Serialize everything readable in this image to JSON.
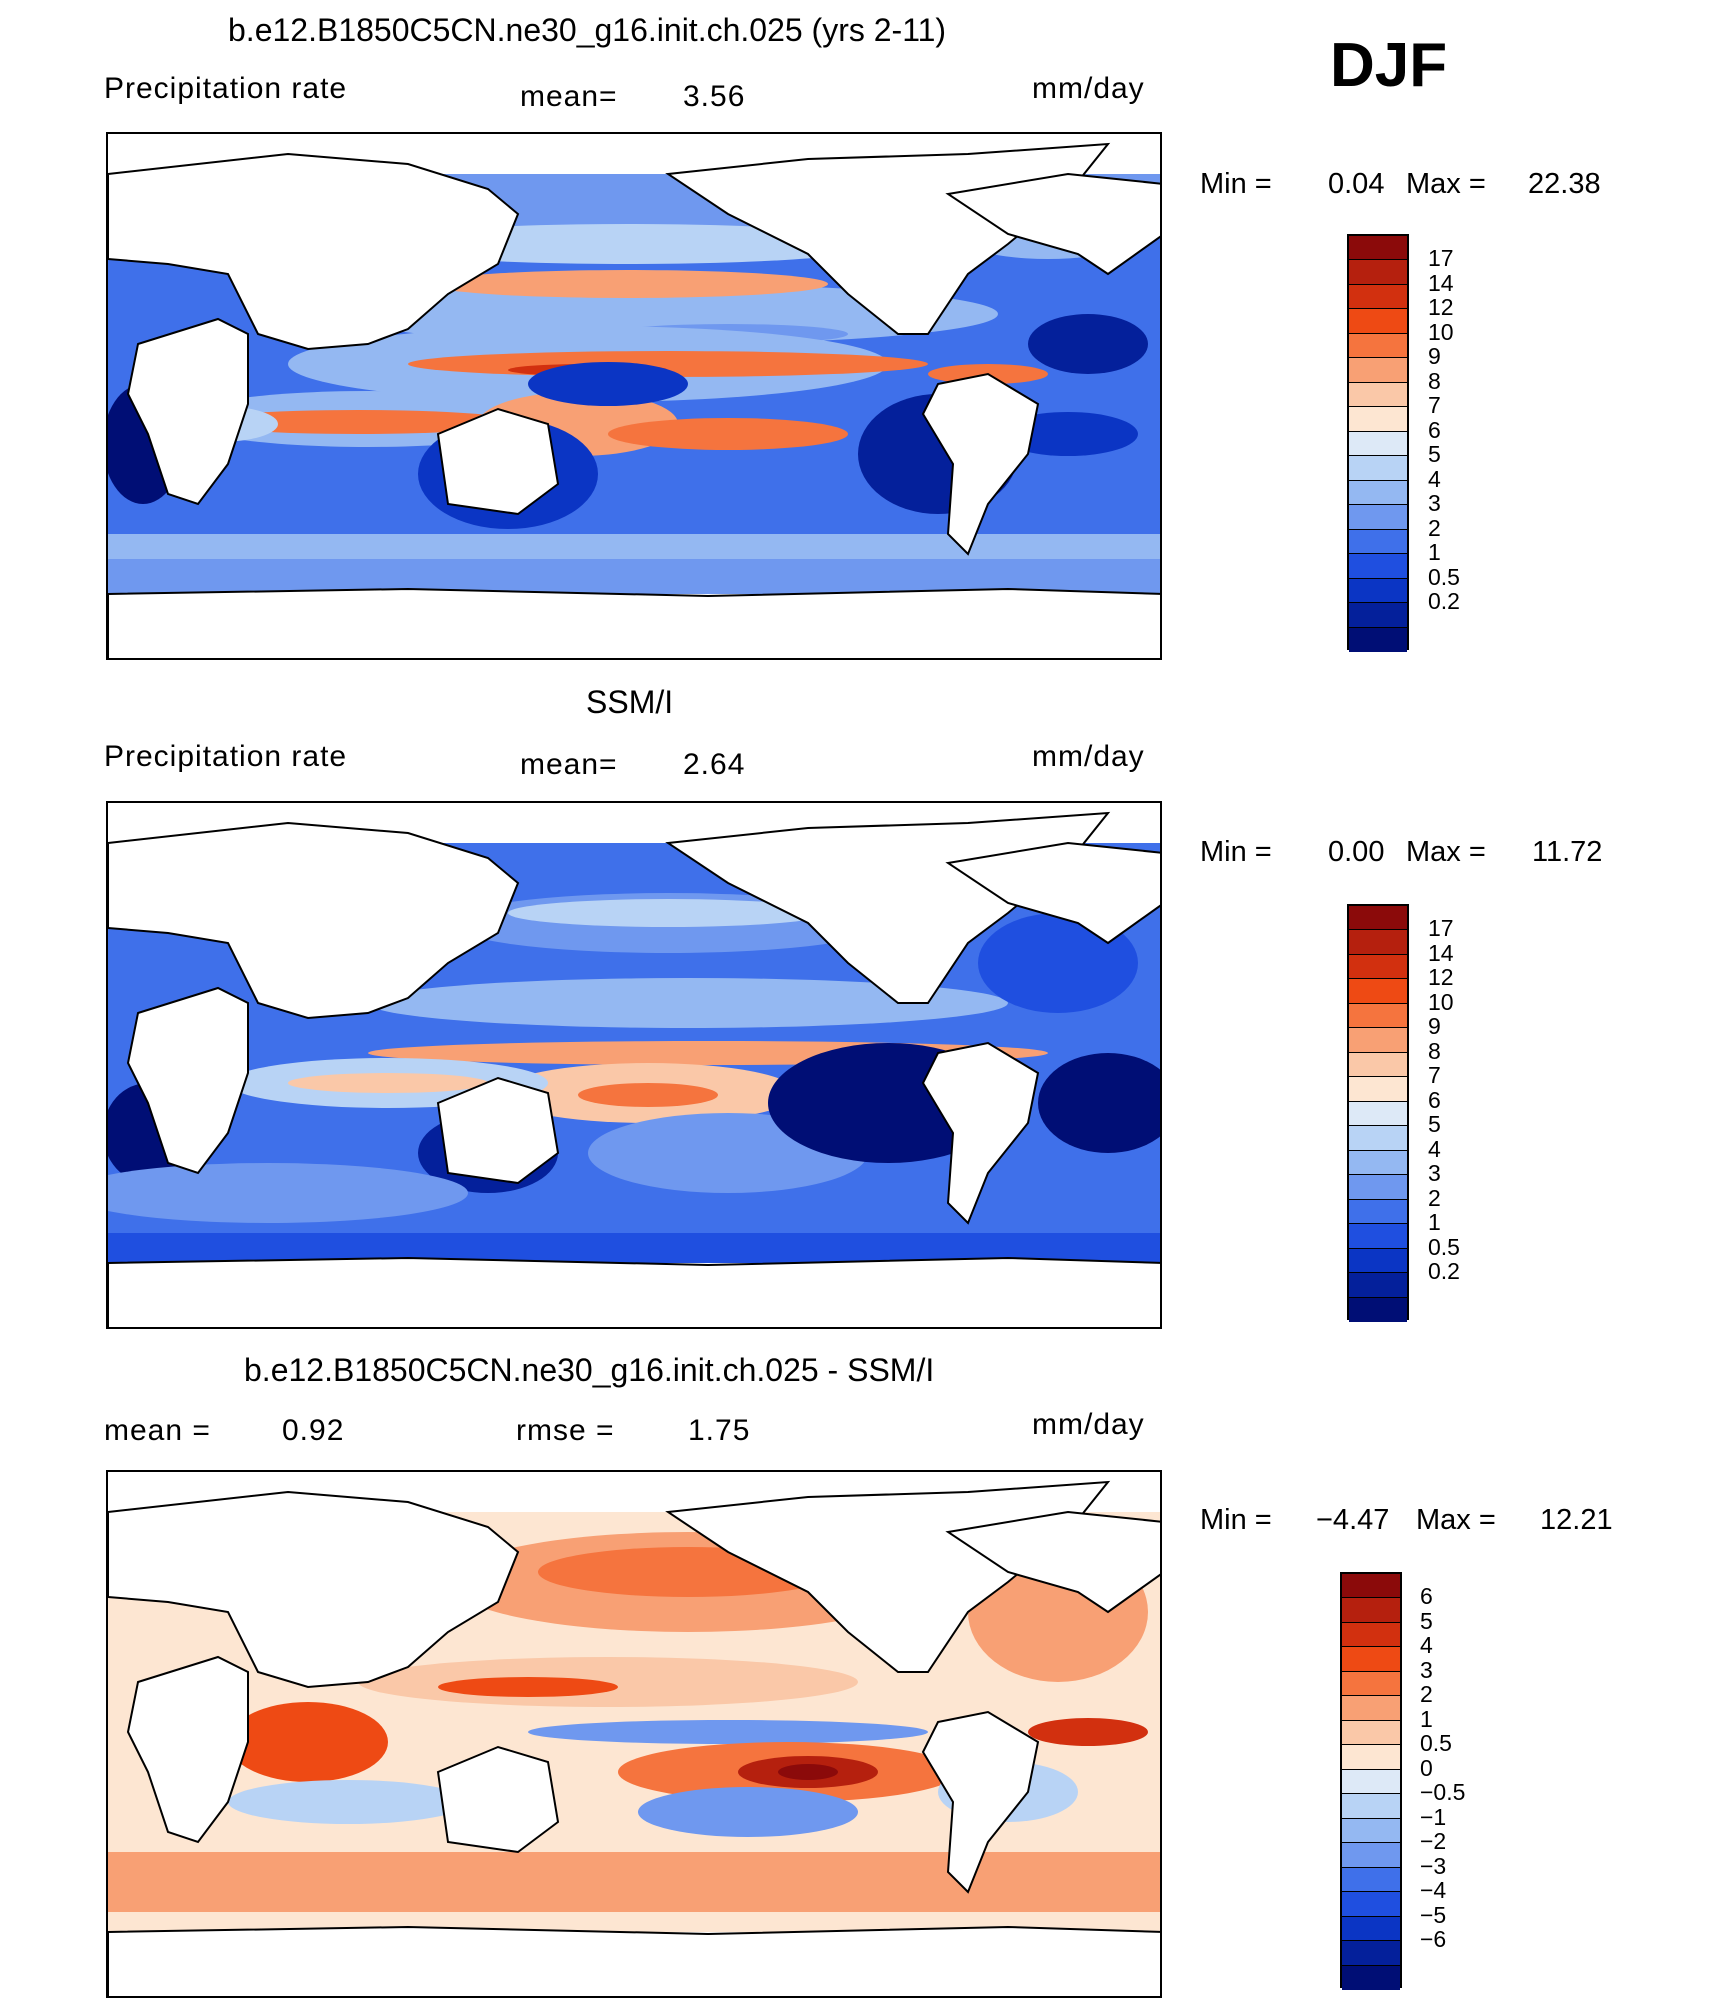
{
  "season": "DJF",
  "units": "mm/day",
  "panels": [
    {
      "title": "b.e12.B1850C5CN.ne30_g16.init.ch.025 (yrs 2-11)",
      "left_label": "Precipitation  rate",
      "mean_label": "mean=",
      "mean_value": "3.56",
      "min_label": "Min  =",
      "min_value": "0.04",
      "max_label": "Max  =",
      "max_value": "22.38"
    },
    {
      "title": "SSM/I",
      "left_label": "Precipitation  rate",
      "mean_label": "mean=",
      "mean_value": "2.64",
      "min_label": "Min  =",
      "min_value": "0.00",
      "max_label": "Max  =",
      "max_value": "11.72"
    },
    {
      "title": "b.e12.B1850C5CN.ne30_g16.init.ch.025 - SSM/I",
      "left_label": "mean  =",
      "left_value": "0.92",
      "rmse_label": "rmse  =",
      "rmse_value": "1.75",
      "min_label": "Min  =",
      "min_value": "−4.47",
      "max_label": "Max  =",
      "max_value": "12.21"
    }
  ],
  "colorbar_abs": {
    "colors": [
      "#8b0a0a",
      "#b5200e",
      "#d2300f",
      "#ee4a14",
      "#f5743e",
      "#f8a074",
      "#fac8a8",
      "#fde6d2",
      "#dde9f7",
      "#b8d3f5",
      "#94b8f2",
      "#6f98ef",
      "#3f70ea",
      "#1f4fe0",
      "#0b35c4",
      "#04209b",
      "#000e75"
    ],
    "ticks": [
      "17",
      "14",
      "12",
      "10",
      "9",
      "8",
      "7",
      "6",
      "5",
      "4",
      "3",
      "2",
      "1",
      "0.5",
      "0.2"
    ]
  },
  "colorbar_diff": {
    "colors": [
      "#8b0a0a",
      "#b5200e",
      "#d2300f",
      "#ee4a14",
      "#f5743e",
      "#f8a074",
      "#fac8a8",
      "#fde6d2",
      "#dde9f7",
      "#b8d3f5",
      "#94b8f2",
      "#6f98ef",
      "#3f70ea",
      "#1f4fe0",
      "#0b35c4",
      "#04209b",
      "#000e75"
    ],
    "ticks": [
      "6",
      "5",
      "4",
      "3",
      "2",
      "1",
      "0.5",
      "0",
      "−0.5",
      "−1",
      "−2",
      "−3",
      "−4",
      "−5",
      "−6"
    ]
  }
}
